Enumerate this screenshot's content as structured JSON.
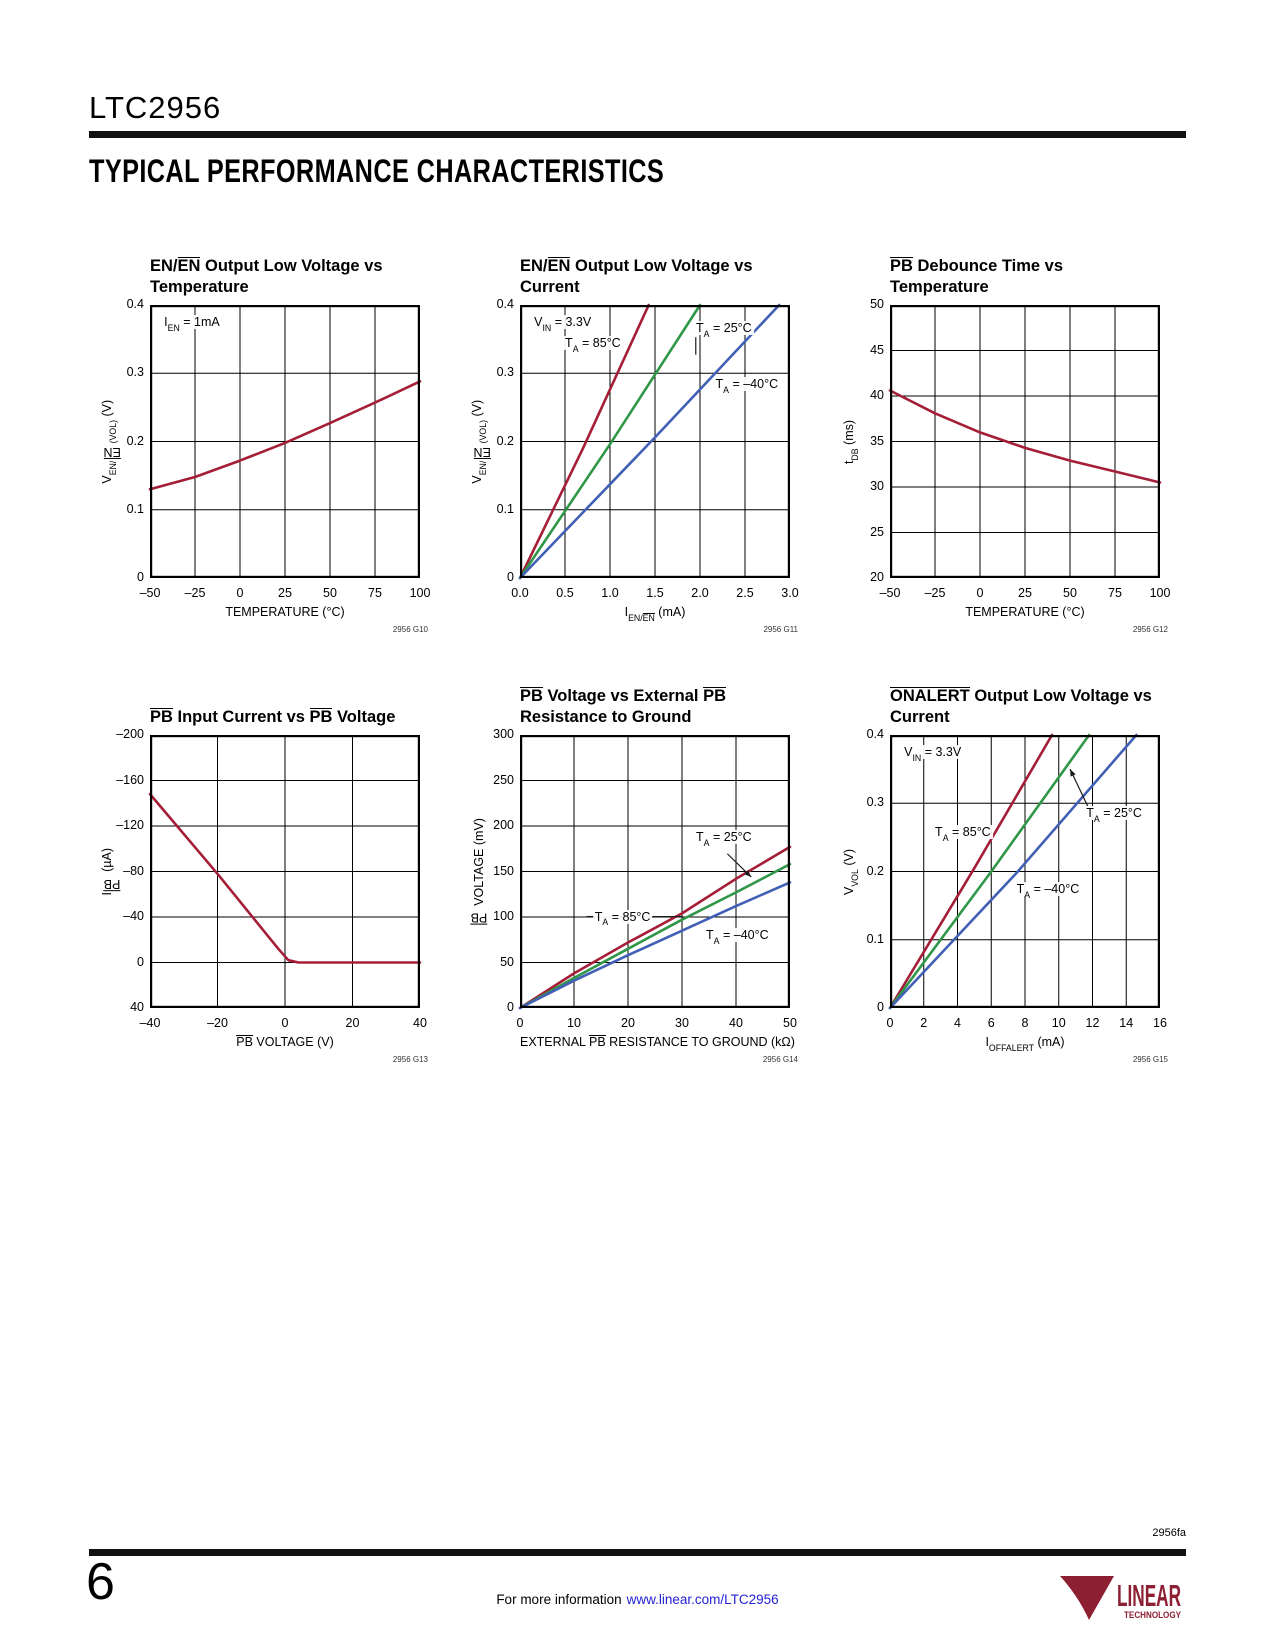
{
  "page": {
    "part_number": "LTC2956",
    "section_title": "TYPICAL PERFORMANCE CHARACTERISTICS",
    "page_number": "6",
    "doc_code": "2956fa",
    "footer_text": "For more information",
    "footer_link": "www.linear.com/LTC2956",
    "logo": {
      "mark": "LT",
      "brand": "LINEAR",
      "sub": "TECHNOLOGY"
    }
  },
  "colors": {
    "series_red": "#a51e37",
    "series_green": "#309648",
    "series_blue": "#4160b5",
    "logo_red": "#8d1f33",
    "link_blue": "#2323d6"
  },
  "chart_data": [
    {
      "id": "2956 G10",
      "type": "line",
      "title": [
        "EN/^EN^ Output Low Voltage vs",
        "Temperature"
      ],
      "xlabel": "TEMPERATURE (°C)",
      "ylabel": "V~EN/^EN^(VOL)~ (V)",
      "xlim": [
        -50,
        100
      ],
      "ylim": [
        0,
        0.4
      ],
      "grid": true,
      "legend": "inline-labels",
      "xtick_vals": [
        -50,
        -25,
        0,
        25,
        50,
        75,
        100
      ],
      "xtick_labels": [
        "–50",
        "–25",
        "0",
        "25",
        "50",
        "75",
        "100"
      ],
      "ytick_vals": [
        0,
        0.1,
        0.2,
        0.3,
        0.4
      ],
      "ytick_labels": [
        "0",
        "0.1",
        "0.2",
        "0.3",
        "0.4"
      ],
      "series": [
        {
          "name": "typical",
          "color": "#a51e37",
          "points": [
            [
              -50,
              0.13
            ],
            [
              -25,
              0.148
            ],
            [
              0,
              0.172
            ],
            [
              25,
              0.198
            ],
            [
              50,
              0.227
            ],
            [
              75,
              0.257
            ],
            [
              100,
              0.288
            ]
          ]
        }
      ],
      "labels": [
        {
          "text": "I~EN~ = 1mA",
          "fx": 0.045,
          "fy": 0.062,
          "anchor": "left"
        }
      ],
      "leaders": []
    },
    {
      "id": "2956 G11",
      "type": "line",
      "title": [
        "EN/^EN^ Output Low Voltage vs",
        "Current"
      ],
      "xlabel": "I~EN/^EN^~ (mA)",
      "ylabel": "V~EN/^EN^(VOL)~ (V)",
      "xlim": [
        0,
        3
      ],
      "ylim": [
        0,
        0.4
      ],
      "grid": true,
      "legend": "inline-labels",
      "xtick_vals": [
        0,
        0.5,
        1.0,
        1.5,
        2.0,
        2.5,
        3.0
      ],
      "xtick_labels": [
        "0.0",
        "0.5",
        "1.0",
        "1.5",
        "2.0",
        "2.5",
        "3.0"
      ],
      "ytick_vals": [
        0,
        0.1,
        0.2,
        0.3,
        0.4
      ],
      "ytick_labels": [
        "0",
        "0.1",
        "0.2",
        "0.3",
        "0.4"
      ],
      "series": [
        {
          "name": "T~A~ = 85°C",
          "color": "#a51e37",
          "points": [
            [
              0,
              0
            ],
            [
              0.7,
              0.19
            ],
            [
              1.43,
              0.4
            ]
          ]
        },
        {
          "name": "T~A~ = 25°C",
          "color": "#309648",
          "points": [
            [
              0,
              0
            ],
            [
              1.0,
              0.196
            ],
            [
              2.0,
              0.4
            ]
          ]
        },
        {
          "name": "T~A~ = –40°C",
          "color": "#4160b5",
          "points": [
            [
              0,
              0
            ],
            [
              1.5,
              0.206
            ],
            [
              2.88,
              0.4
            ]
          ]
        }
      ],
      "labels": [
        {
          "text": "V~IN~ = 3.3V",
          "fx": 0.045,
          "fy": 0.062,
          "anchor": "left"
        },
        {
          "text": "T~A~ = 85°C",
          "fx": 0.27,
          "fy": 0.14,
          "anchor": "center"
        },
        {
          "text": "T~A~ = 25°C",
          "fx": 0.755,
          "fy": 0.085,
          "anchor": "center"
        },
        {
          "text": "T~A~ = –40°C",
          "fx": 0.84,
          "fy": 0.29,
          "anchor": "center"
        }
      ],
      "leaders": [
        {
          "type": "line",
          "from": [
            0.651,
            0.118
          ],
          "to": [
            0.651,
            0.182
          ]
        }
      ]
    },
    {
      "id": "2956 G12",
      "type": "line",
      "title": [
        "^PB^ Debounce Time vs",
        "Temperature"
      ],
      "xlabel": "TEMPERATURE (°C)",
      "ylabel": "t~DB~ (ms)",
      "xlim": [
        -50,
        100
      ],
      "ylim": [
        20,
        50
      ],
      "grid": true,
      "legend": "none",
      "xtick_vals": [
        -50,
        -25,
        0,
        25,
        50,
        75,
        100
      ],
      "xtick_labels": [
        "–50",
        "–25",
        "0",
        "25",
        "50",
        "75",
        "100"
      ],
      "ytick_vals": [
        20,
        25,
        30,
        35,
        40,
        45,
        50
      ],
      "ytick_labels": [
        "20",
        "25",
        "30",
        "35",
        "40",
        "45",
        "50"
      ],
      "series": [
        {
          "name": "typical",
          "color": "#a51e37",
          "points": [
            [
              -50,
              40.6
            ],
            [
              -25,
              38.1
            ],
            [
              0,
              36.0
            ],
            [
              25,
              34.3
            ],
            [
              50,
              32.9
            ],
            [
              75,
              31.7
            ],
            [
              100,
              30.5
            ]
          ]
        }
      ],
      "labels": [],
      "leaders": []
    },
    {
      "id": "2956 G13",
      "type": "line",
      "title": [
        "^PB^ Input Current vs ^PB^ Voltage"
      ],
      "xlabel": "^PB^ VOLTAGE (V)",
      "ylabel": "I~^PB^~ (µA)",
      "xlim": [
        -40,
        40
      ],
      "ylim": [
        40,
        -200
      ],
      "y_inverted": true,
      "grid": true,
      "legend": "none",
      "xtick_vals": [
        -40,
        -20,
        0,
        20,
        40
      ],
      "xtick_labels": [
        "–40",
        "–20",
        "0",
        "20",
        "40"
      ],
      "ytick_vals": [
        -200,
        -160,
        -120,
        -80,
        -40,
        0,
        40
      ],
      "ytick_labels": [
        "–200",
        "–160",
        "–120",
        "–80",
        "–40",
        "0",
        "40"
      ],
      "series": [
        {
          "name": "typical",
          "color": "#a51e37",
          "points": [
            [
              -40,
              -148
            ],
            [
              -20,
              -78
            ],
            [
              -2,
              -12
            ],
            [
              1,
              -2
            ],
            [
              4,
              0
            ],
            [
              40,
              0
            ]
          ]
        }
      ],
      "labels": [],
      "leaders": []
    },
    {
      "id": "2956 G14",
      "type": "line",
      "title": [
        "^PB^ Voltage vs External ^PB^",
        "Resistance to Ground"
      ],
      "xlabel": "EXTERNAL ^PB^ RESISTANCE TO GROUND (kΩ)",
      "ylabel": "^PB^ VOLTAGE (mV)",
      "xlim": [
        0,
        50
      ],
      "ylim": [
        0,
        300
      ],
      "grid": true,
      "legend": "inline-labels",
      "xtick_vals": [
        0,
        10,
        20,
        30,
        40,
        50
      ],
      "xtick_labels": [
        "0",
        "10",
        "20",
        "30",
        "40",
        "50"
      ],
      "ytick_vals": [
        0,
        50,
        100,
        150,
        200,
        250,
        300
      ],
      "ytick_labels": [
        "0",
        "50",
        "100",
        "150",
        "200",
        "250",
        "300"
      ],
      "series": [
        {
          "name": "T~A~ = 85°C",
          "color": "#a51e37",
          "points": [
            [
              0,
              0
            ],
            [
              10,
              38
            ],
            [
              20,
              72
            ],
            [
              30,
              104
            ],
            [
              40,
              142
            ],
            [
              50,
              177
            ]
          ]
        },
        {
          "name": "T~A~ = 25°C",
          "color": "#309648",
          "points": [
            [
              0,
              0
            ],
            [
              10,
              33
            ],
            [
              20,
              65
            ],
            [
              30,
              97
            ],
            [
              40,
              127
            ],
            [
              50,
              158
            ]
          ]
        },
        {
          "name": "T~A~ = –40°C",
          "color": "#4160b5",
          "points": [
            [
              0,
              0
            ],
            [
              10,
              30
            ],
            [
              20,
              58
            ],
            [
              30,
              85
            ],
            [
              40,
              112
            ],
            [
              50,
              138
            ]
          ]
        }
      ],
      "labels": [
        {
          "text": "T~A~ = 25°C",
          "fx": 0.755,
          "fy": 0.375,
          "anchor": "center"
        },
        {
          "text": "T~A~ = 85°C",
          "fx": 0.38,
          "fy": 0.665,
          "anchor": "center"
        },
        {
          "text": "T~A~ = –40°C",
          "fx": 0.805,
          "fy": 0.732,
          "anchor": "center"
        }
      ],
      "leaders": [
        {
          "type": "arrow",
          "from": [
            0.768,
            0.435
          ],
          "to": [
            0.856,
            0.52
          ]
        },
        {
          "type": "line",
          "from": [
            0.246,
            0.665
          ],
          "to": [
            0.282,
            0.665
          ]
        },
        {
          "type": "line",
          "from": [
            0.487,
            0.665
          ],
          "to": [
            0.6,
            0.665
          ]
        }
      ]
    },
    {
      "id": "2956 G15",
      "type": "line",
      "title": [
        "^ONALERT^ Output Low Voltage vs",
        "Current"
      ],
      "xlabel": "I~OFFALERT~ (mA)",
      "ylabel": "V~VOL~ (V)",
      "xlim": [
        0,
        16
      ],
      "ylim": [
        0,
        0.4
      ],
      "grid": true,
      "legend": "inline-labels",
      "xtick_vals": [
        0,
        2,
        4,
        6,
        8,
        10,
        12,
        14,
        16
      ],
      "xtick_labels": [
        "0",
        "2",
        "4",
        "6",
        "8",
        "10",
        "12",
        "14",
        "16"
      ],
      "ytick_vals": [
        0,
        0.1,
        0.2,
        0.3,
        0.4
      ],
      "ytick_labels": [
        "0",
        "0.1",
        "0.2",
        "0.3",
        "0.4"
      ],
      "series": [
        {
          "name": "T~A~ = 85°C",
          "color": "#a51e37",
          "points": [
            [
              0,
              0
            ],
            [
              5.0,
              0.205
            ],
            [
              9.6,
              0.4
            ]
          ]
        },
        {
          "name": "T~A~ = 25°C",
          "color": "#309648",
          "points": [
            [
              0,
              0
            ],
            [
              6.0,
              0.2
            ],
            [
              11.8,
              0.4
            ]
          ]
        },
        {
          "name": "T~A~ = –40°C",
          "color": "#4160b5",
          "points": [
            [
              0,
              0
            ],
            [
              7.5,
              0.198
            ],
            [
              14.6,
              0.4
            ]
          ]
        }
      ],
      "labels": [
        {
          "text": "V~IN~ = 3.3V",
          "fx": 0.045,
          "fy": 0.062,
          "anchor": "left"
        },
        {
          "text": "T~A~ = 85°C",
          "fx": 0.27,
          "fy": 0.355,
          "anchor": "center"
        },
        {
          "text": "T~A~ = 25°C",
          "fx": 0.83,
          "fy": 0.285,
          "anchor": "center"
        },
        {
          "text": "T~A~ = –40°C",
          "fx": 0.585,
          "fy": 0.565,
          "anchor": "center"
        }
      ],
      "leaders": [
        {
          "type": "arrow",
          "from": [
            0.732,
            0.26
          ],
          "to": [
            0.667,
            0.125
          ]
        }
      ]
    }
  ]
}
